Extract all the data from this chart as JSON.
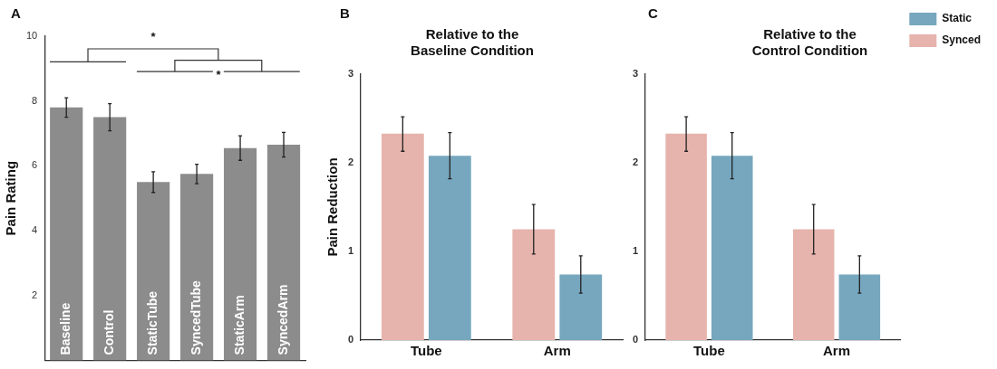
{
  "chart_data": [
    {
      "type": "bar",
      "ylabel": "Pain Rating",
      "categories": [
        "Baseline",
        "Control",
        "StaticTube",
        "SyncedTube",
        "StaticArm",
        "SyncedArm"
      ],
      "values": [
        7.8,
        7.5,
        5.5,
        5.75,
        6.55,
        6.65
      ],
      "errors": [
        0.3,
        0.42,
        0.32,
        0.3,
        0.38,
        0.38
      ],
      "color": "#8c8c8c",
      "ylim": [
        0,
        10
      ],
      "yticks": [
        2,
        4,
        6,
        8,
        10
      ],
      "grid": false,
      "legend": false,
      "annotations": [
        "A",
        "*",
        "*"
      ]
    },
    {
      "type": "bar",
      "title": "Relative to the Baseline Condition",
      "ylabel": "Pain Reduction",
      "categories": [
        "Tube",
        "Arm"
      ],
      "series": [
        {
          "color": "#e6b3ad",
          "values": [
            2.33,
            1.25
          ],
          "errors": [
            [
              2.13,
              2.52
            ],
            [
              0.97,
              1.53
            ]
          ]
        },
        {
          "color": "#76a7be",
          "values": [
            2.08,
            0.74
          ],
          "errors": [
            [
              1.82,
              2.34
            ],
            [
              0.53,
              0.95
            ]
          ]
        }
      ],
      "ylim": [
        0,
        3
      ],
      "yticks": [
        0,
        1,
        2,
        3
      ],
      "grid": false,
      "legend": false,
      "annotations": [
        "B"
      ]
    },
    {
      "type": "bar",
      "title": "Relative to the Control Condition",
      "categories": [
        "Tube",
        "Arm"
      ],
      "series": [
        {
          "name": "Synced",
          "color": "#e6b3ad",
          "values": [
            2.33,
            1.25
          ],
          "errors": [
            [
              2.13,
              2.52
            ],
            [
              0.97,
              1.53
            ]
          ]
        },
        {
          "name": "Static",
          "color": "#76a7be",
          "values": [
            2.08,
            0.74
          ],
          "errors": [
            [
              1.82,
              2.34
            ],
            [
              0.53,
              0.95
            ]
          ]
        }
      ],
      "ylim": [
        0,
        3
      ],
      "yticks": [
        0,
        1,
        2,
        3
      ],
      "grid": false,
      "legend": "top right",
      "annotations": [
        "C"
      ]
    }
  ]
}
